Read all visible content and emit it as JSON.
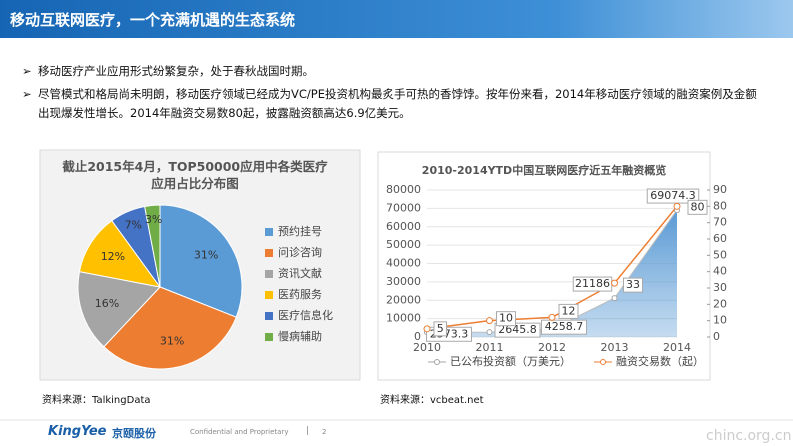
{
  "header": {
    "title": "移动互联网医疗，一个充满机遇的生态系统"
  },
  "bullets": [
    "移动医疗产业应用形式纷繁复杂，处于春秋战国时期。",
    "尽管模式和格局尚未明朗，移动医疗领域已经成为VC/PE投资机构最炙手可热的香饽饽。按年份来看，2014年移动医疗领域的融资案例及金额出现爆发性增长。2014年融资交易数80起，披露融资额高达6.9亿美元。"
  ],
  "chart_data": [
    {
      "type": "pie",
      "title": "截止2015年4月，TOP50000应用中各类医疗应用占比分布图",
      "categories": [
        "预约挂号",
        "问诊咨询",
        "资讯文献",
        "医药服务",
        "医疗信息化",
        "慢病辅助"
      ],
      "values": [
        31,
        31,
        16,
        12,
        7,
        3
      ],
      "value_labels": [
        "31%",
        "31%",
        "16%",
        "12%",
        "7%",
        "3%"
      ],
      "colors": [
        "#5b9bd5",
        "#ed7d31",
        "#a5a5a5",
        "#ffc000",
        "#4472c4",
        "#70ad47"
      ],
      "legend": "right"
    },
    {
      "type": "area-line",
      "title": "2010-2014YTD中国互联网医疗近五年融资概览",
      "categories": [
        "2010",
        "2011",
        "2012",
        "2013",
        "2014"
      ],
      "series": [
        {
          "name": "已公布投资额（万美元）",
          "color": "#5b9bd5",
          "values": [
            2573.3,
            2645.8,
            4258.7,
            21186,
            69074.3
          ]
        },
        {
          "name": "融资交易数（起）",
          "color": "#ed7d31",
          "axis": "y2",
          "values": [
            5,
            10,
            12,
            33,
            80
          ]
        }
      ],
      "ylim": [
        0,
        80000
      ],
      "yticks": [
        0,
        10000,
        20000,
        30000,
        40000,
        50000,
        60000,
        70000,
        80000
      ],
      "y2lim": [
        0,
        90
      ],
      "y2ticks": [
        0,
        10,
        20,
        30,
        40,
        50,
        60,
        70,
        80,
        90
      ],
      "legend": "bottom"
    }
  ],
  "sources": [
    "资料来源：TalkingData",
    "资料来源：vcbeat.net"
  ],
  "footer": {
    "logo": "KingYee",
    "logo_cn": "京颐股份",
    "note": "Confidential and Proprietary",
    "separator": "|",
    "page": "2",
    "watermark": "chinc.org.cn"
  }
}
